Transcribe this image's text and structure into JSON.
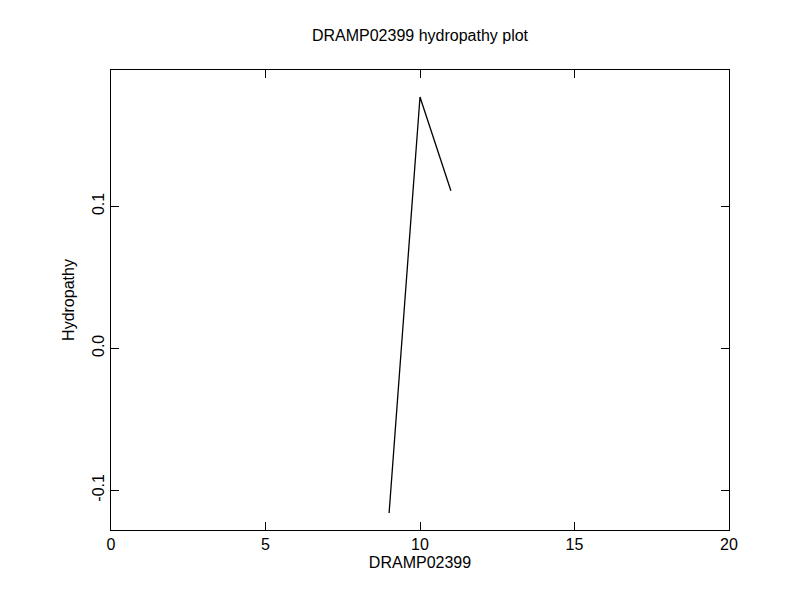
{
  "chart_data": {
    "type": "line",
    "title": "DRAMP02399 hydropathy plot",
    "x_label": "DRAMP02399",
    "y_label": "Hydropathy",
    "x": [
      9,
      10,
      11
    ],
    "values": [
      -0.116,
      0.177,
      0.111
    ],
    "color": "#000000",
    "xlim": [
      0,
      20
    ],
    "xticks": [
      0,
      5,
      10,
      15,
      20
    ],
    "ylim": [
      -0.128,
      0.196
    ],
    "yticks": [
      -0.1,
      {
        "value": 0,
        "label": "0.0"
      },
      0.1
    ],
    "grid": false
  }
}
